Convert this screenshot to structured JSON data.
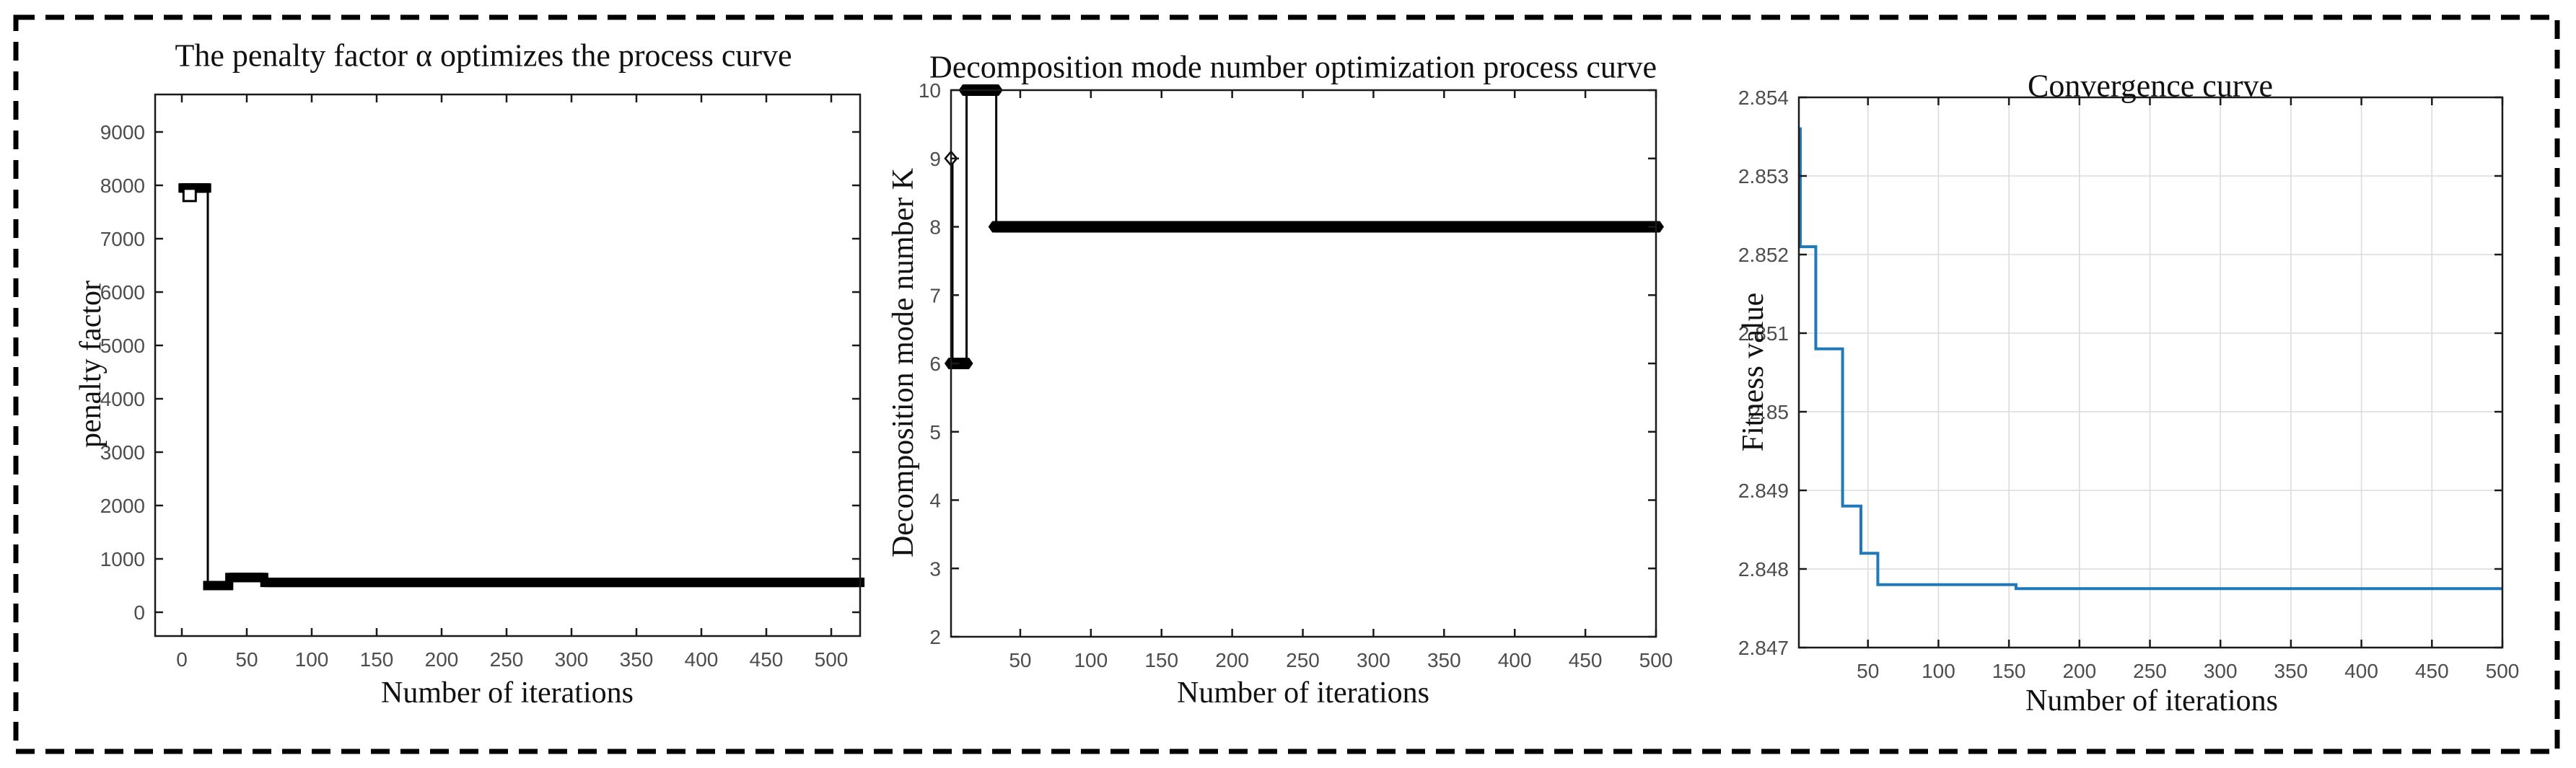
{
  "figure": {
    "border": {
      "color": "#000000",
      "style": "dashed"
    },
    "background": "#ffffff"
  },
  "chart_data": [
    {
      "id": "penalty-factor-curve",
      "type": "line",
      "title": "The penalty factor α optimizes the process curve",
      "xlabel": "Number of iterations",
      "ylabel": "penalty factor",
      "x_ticks": [
        0,
        50,
        100,
        150,
        200,
        250,
        300,
        350,
        400,
        450,
        500
      ],
      "x_tick_labels": [
        "0",
        "50",
        "100",
        "150",
        "200",
        "250",
        "300",
        "350",
        "400",
        "450",
        "500"
      ],
      "y_ticks": [
        0,
        1000,
        2000,
        3000,
        4000,
        5000,
        6000,
        7000,
        8000,
        9000
      ],
      "y_tick_labels": [
        "0",
        "1000",
        "2000",
        "3000",
        "4000",
        "5000",
        "6000",
        "7000",
        "8000",
        "9000"
      ],
      "xlim": [
        -20,
        522
      ],
      "ylim": [
        -450,
        9700
      ],
      "grid": false,
      "legend": "none",
      "series": [
        {
          "name": "penalty factor",
          "style": "stairs",
          "color": "#000000",
          "line_width": 3,
          "marker": "filled-square",
          "marker_size": 13,
          "marker_start": 1,
          "steps": [
            [
              1,
              7950
            ],
            [
              20,
              500
            ],
            [
              37,
              650
            ],
            [
              64,
              560
            ],
            [
              500,
              560
            ]
          ]
        },
        {
          "name": "initial point",
          "style": "scatter",
          "color": "#000000",
          "marker": "open-square",
          "marker_size": 17,
          "points": [
            [
              6,
              7820
            ]
          ]
        }
      ]
    },
    {
      "id": "decomposition-mode-number-curve",
      "type": "line",
      "title": "Decomposition mode number optimization process curve",
      "xlabel": "Number of iterations",
      "ylabel": "Decomposition mode number K",
      "x_ticks": [
        50,
        100,
        150,
        200,
        250,
        300,
        350,
        400,
        450,
        500
      ],
      "x_tick_labels": [
        "50",
        "100",
        "150",
        "200",
        "250",
        "300",
        "350",
        "400",
        "450",
        "500"
      ],
      "y_ticks": [
        2,
        3,
        4,
        5,
        6,
        7,
        8,
        9,
        10
      ],
      "y_tick_labels": [
        "2",
        "3",
        "4",
        "5",
        "6",
        "7",
        "8",
        "9",
        "10"
      ],
      "xlim": [
        1,
        500
      ],
      "ylim": [
        2,
        10
      ],
      "grid": false,
      "legend": "none",
      "series": [
        {
          "name": "decomposition mode number K",
          "style": "stairs",
          "color": "#000000",
          "line_width": 3,
          "marker": "filled-hexagon",
          "marker_size": 22,
          "marker_start": 2,
          "steps": [
            [
              1,
              9
            ],
            [
              2,
              6
            ],
            [
              12,
              10
            ],
            [
              33,
              8
            ],
            [
              500,
              8
            ]
          ]
        },
        {
          "name": "initial point",
          "style": "scatter",
          "color": "#000000",
          "marker": "open-diamond",
          "marker_size": 19,
          "points": [
            [
              1,
              9
            ]
          ]
        }
      ]
    },
    {
      "id": "convergence-curve",
      "type": "line",
      "title": "Convergence curve",
      "xlabel": "Number of iterations",
      "ylabel": "Fitness value",
      "x_ticks": [
        50,
        100,
        150,
        200,
        250,
        300,
        350,
        400,
        450,
        500
      ],
      "x_tick_labels": [
        "50",
        "100",
        "150",
        "200",
        "250",
        "300",
        "350",
        "400",
        "450",
        "500"
      ],
      "y_ticks": [
        2.847,
        2.848,
        2.849,
        2.85,
        2.851,
        2.852,
        2.853,
        2.854
      ],
      "y_tick_labels": [
        "2.847",
        "2.848",
        "2.849",
        "2.85",
        "2.851",
        "2.852",
        "2.853",
        "2.854"
      ],
      "xlim": [
        1,
        500
      ],
      "ylim": [
        2.847,
        2.854
      ],
      "grid": true,
      "grid_color": "#dcdcdc",
      "legend": "none",
      "series": [
        {
          "name": "fitness value",
          "style": "stairs",
          "color": "#2079b8",
          "line_width": 4,
          "marker": "none",
          "steps": [
            [
              1,
              2.8536
            ],
            [
              2,
              2.8521
            ],
            [
              13,
              2.8508
            ],
            [
              32,
              2.8488
            ],
            [
              45,
              2.8482
            ],
            [
              57,
              2.8478
            ],
            [
              155,
              2.84775
            ],
            [
              500,
              2.84775
            ]
          ]
        }
      ]
    }
  ]
}
